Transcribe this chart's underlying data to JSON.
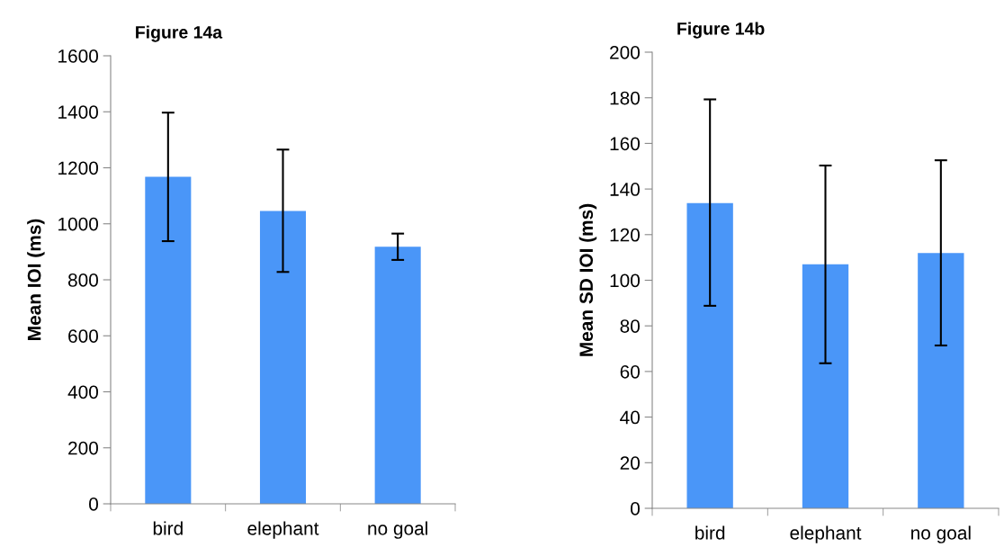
{
  "chart_data": [
    {
      "type": "bar",
      "title": "Figure 14a",
      "ylabel": "Mean IOI (ms)",
      "categories": [
        "bird",
        "elephant",
        "no goal"
      ],
      "values": [
        1168,
        1046,
        918
      ],
      "color": "#4a96f8",
      "errors": [
        [
          938,
          1397
        ],
        [
          828,
          1265
        ],
        [
          871,
          965
        ]
      ],
      "ylim": [
        0,
        1600
      ],
      "yticks": [
        0,
        200,
        400,
        600,
        800,
        1000,
        1200,
        1400,
        1600
      ],
      "grid": false
    },
    {
      "type": "bar",
      "title": "Figure 14b",
      "ylabel": "Mean SD IOI (ms)",
      "categories": [
        "bird",
        "elephant",
        "no goal"
      ],
      "values": [
        133.8,
        107,
        111.9
      ],
      "color": "#4a96f8",
      "errors": [
        [
          88.8,
          179.3
        ],
        [
          63.6,
          150.3
        ],
        [
          71.4,
          152.6
        ]
      ],
      "ylim": [
        0,
        200
      ],
      "yticks": [
        0,
        20,
        40,
        60,
        80,
        100,
        120,
        140,
        160,
        180,
        200
      ],
      "grid": false
    }
  ]
}
